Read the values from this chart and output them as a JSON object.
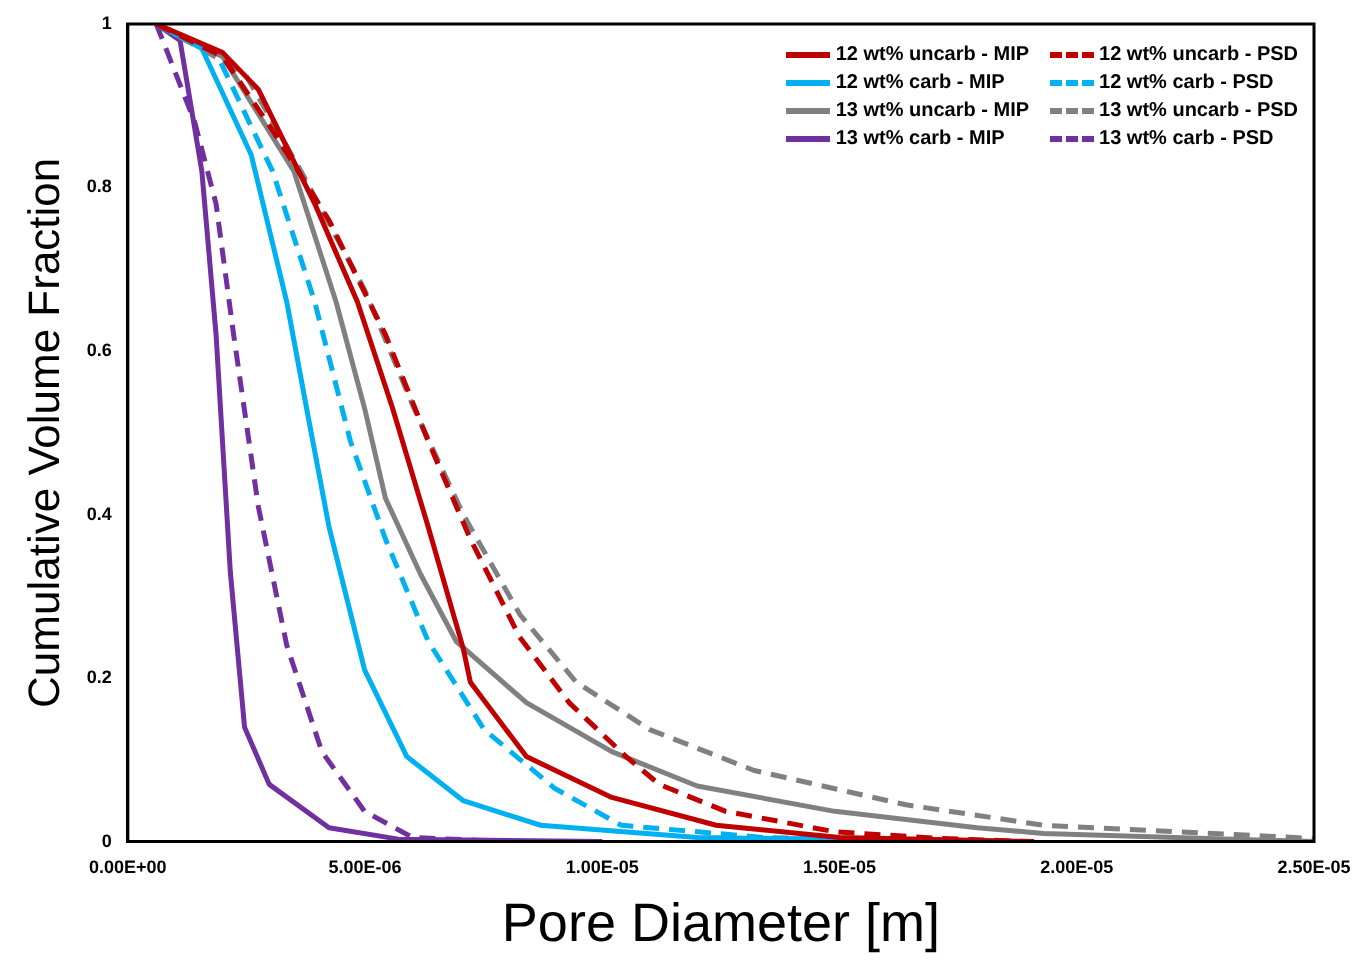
{
  "chart_data": {
    "type": "line",
    "xlabel": "Pore Diameter [m]",
    "ylabel": "Cumulative Volume Fraction",
    "xlim": [
      0,
      2.5e-05
    ],
    "ylim": [
      0,
      1
    ],
    "xticks": [
      {
        "value": 0,
        "label": "0.00E+00"
      },
      {
        "value": 5e-06,
        "label": "5.00E-06"
      },
      {
        "value": 1e-05,
        "label": "1.00E-05"
      },
      {
        "value": 1.5e-05,
        "label": "1.50E-05"
      },
      {
        "value": 2e-05,
        "label": "2.00E-05"
      },
      {
        "value": 2.5e-05,
        "label": "2.50E-05"
      }
    ],
    "yticks": [
      0,
      0.2,
      0.4,
      0.6,
      0.8,
      1
    ],
    "grid": false,
    "legend": "top right",
    "marker": "none",
    "series": [
      {
        "name": "12 wt% uncarb - MIP",
        "color": "#c00000",
        "line_style": "solid",
        "x": [
          6e-07,
          2e-06,
          2.75e-06,
          3.94e-06,
          4.84e-06,
          5.58e-06,
          6.33e-06,
          7.07e-06,
          7.22e-06,
          8.4e-06,
          1.02e-05,
          1.24e-05,
          1.5e-05,
          1.91e-05
        ],
        "values": [
          1,
          0.965,
          0.92,
          0.78,
          0.66,
          0.53,
          0.385,
          0.236,
          0.195,
          0.104,
          0.054,
          0.02,
          0.005,
          0
        ]
      },
      {
        "name": "12 wt% uncarb - PSD",
        "color": "#c00000",
        "line_style": "dashed",
        "x": [
          6e-07,
          2e-06,
          3.05e-06,
          4.24e-06,
          5.43e-06,
          6.33e-06,
          7.22e-06,
          8.26e-06,
          9.3e-06,
          1.05e-05,
          1.12e-05,
          1.26e-05,
          1.49e-05,
          1.71e-05,
          1.9e-05
        ],
        "values": [
          1,
          0.96,
          0.87,
          0.76,
          0.62,
          0.49,
          0.37,
          0.25,
          0.17,
          0.104,
          0.07,
          0.037,
          0.012,
          0.004,
          0
        ]
      },
      {
        "name": "12 wt% carb - MIP",
        "color": "#00b0f0",
        "line_style": "solid",
        "x": [
          6e-07,
          1.56e-06,
          2.6e-06,
          3.35e-06,
          3.8e-06,
          4.24e-06,
          4.99e-06,
          5.88e-06,
          7.07e-06,
          8.7e-06,
          1.2e-05,
          1.86e-05
        ],
        "values": [
          1,
          0.97,
          0.84,
          0.66,
          0.52,
          0.385,
          0.21,
          0.104,
          0.05,
          0.02,
          0.005,
          0
        ]
      },
      {
        "name": "12 wt% carb - PSD",
        "color": "#00b0f0",
        "line_style": "dashed",
        "x": [
          6e-07,
          1.86e-06,
          3.05e-06,
          3.94e-06,
          4.69e-06,
          5.43e-06,
          6.33e-06,
          7.51e-06,
          9e-06,
          1.04e-05,
          1.34e-05,
          1.7e-05
        ],
        "values": [
          1,
          0.965,
          0.82,
          0.66,
          0.49,
          0.37,
          0.245,
          0.137,
          0.065,
          0.02,
          0.005,
          0
        ]
      },
      {
        "name": "13 wt% uncarb - MIP",
        "color": "#808080",
        "line_style": "solid",
        "x": [
          6e-07,
          2e-06,
          3.5e-06,
          4.39e-06,
          4.99e-06,
          5.43e-06,
          6.17e-06,
          6.92e-06,
          8.4e-06,
          1.02e-05,
          1.2e-05,
          1.49e-05,
          1.79e-05,
          1.93e-05,
          2.38e-05,
          2.5e-05
        ],
        "values": [
          1,
          0.96,
          0.82,
          0.66,
          0.53,
          0.42,
          0.327,
          0.245,
          0.17,
          0.11,
          0.068,
          0.037,
          0.017,
          0.01,
          0.002,
          0
        ]
      },
      {
        "name": "13 wt% uncarb - PSD",
        "color": "#808080",
        "line_style": "dashed",
        "x": [
          6e-07,
          2.46e-06,
          3.65e-06,
          4.99e-06,
          6.03e-06,
          7.07e-06,
          8.26e-06,
          9.45e-06,
          1.1e-05,
          1.32e-05,
          1.64e-05,
          1.93e-05,
          2.46e-05,
          2.5e-05
        ],
        "values": [
          1,
          0.94,
          0.82,
          0.675,
          0.53,
          0.4,
          0.278,
          0.195,
          0.137,
          0.087,
          0.045,
          0.02,
          0.005,
          0.003
        ]
      },
      {
        "name": "13 wt% carb - MIP",
        "color": "#7030a0",
        "line_style": "solid",
        "x": [
          6e-07,
          1.1e-06,
          1.56e-06,
          1.86e-06,
          2.16e-06,
          2.46e-06,
          2.98e-06,
          4.24e-06,
          5.7e-06,
          1e-05
        ],
        "values": [
          1,
          0.98,
          0.82,
          0.62,
          0.33,
          0.14,
          0.07,
          0.017,
          0.003,
          0
        ]
      },
      {
        "name": "13 wt% carb - PSD",
        "color": "#7030a0",
        "line_style": "dashed",
        "x": [
          6e-07,
          1.41e-06,
          1.86e-06,
          2.23e-06,
          2.75e-06,
          3.35e-06,
          4.09e-06,
          4.99e-06,
          6e-06,
          8e-06
        ],
        "values": [
          1,
          0.88,
          0.78,
          0.62,
          0.41,
          0.24,
          0.11,
          0.037,
          0.005,
          0
        ]
      }
    ]
  }
}
